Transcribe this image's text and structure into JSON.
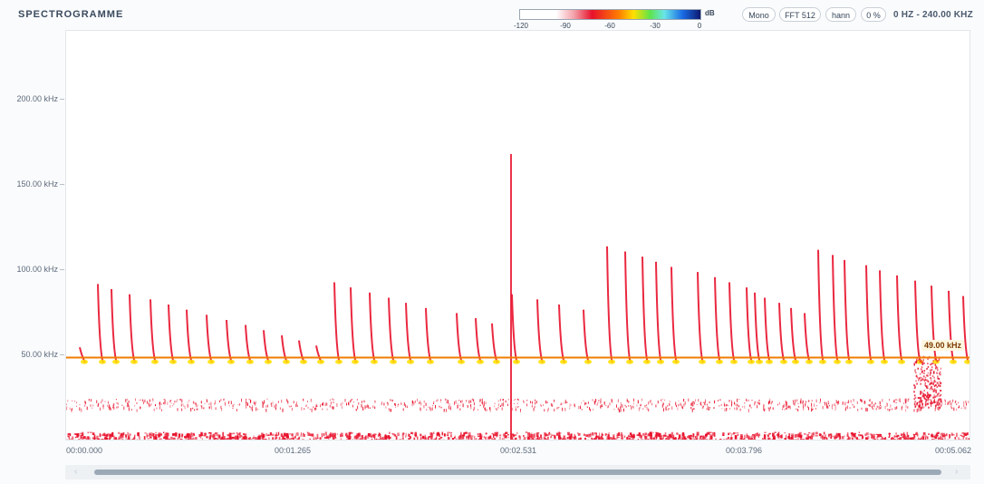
{
  "app": {
    "title": "SPECTROGRAMME"
  },
  "legend": {
    "unit": "dB",
    "ticks": [
      "-120",
      "-90",
      "-60",
      "-30",
      "0"
    ],
    "colors": [
      "#ffffff",
      "#e8112b",
      "#ff7f00",
      "#ffe000",
      "#5ee44a",
      "#68e6e8",
      "#1a6ce6",
      "#0d1a70"
    ]
  },
  "controls": {
    "channel": "Mono",
    "fft": "FFT 512",
    "window": "hann",
    "overlap": "0 %",
    "range": "0 HZ - 240.00 KHZ"
  },
  "yaxis": {
    "labels": [
      "200.00 kHz",
      "150.00 kHz",
      "100.00 kHz",
      "50.00 kHz"
    ]
  },
  "xaxis": {
    "labels": [
      "00:00.000",
      "00:01.265",
      "00:02.531",
      "00:03.796",
      "00:05.062"
    ]
  },
  "cursor": {
    "frequency_label": "49.00 kHz",
    "frequency_khz": 49,
    "color": "#f07d00"
  },
  "spectrogram": {
    "max_khz": 240,
    "duration_s": 5.062,
    "call_color": "#e8112b",
    "noise_color": "#e8112b"
  },
  "scroll": {
    "left_arrow": "‹",
    "right_arrow": "›"
  }
}
